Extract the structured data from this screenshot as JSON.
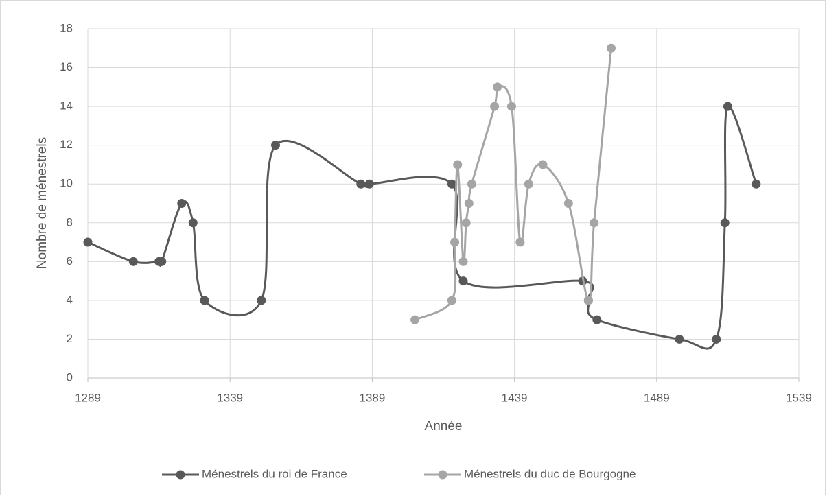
{
  "chart_data": {
    "type": "line",
    "x_label": "Année",
    "y_label": "Nombre de ménestrels",
    "xlim": [
      1289,
      1539
    ],
    "xticks": [
      1289,
      1339,
      1389,
      1439,
      1489,
      1539
    ],
    "ylim": [
      0,
      18
    ],
    "yticks": [
      0,
      2,
      4,
      6,
      8,
      10,
      12,
      14,
      16,
      18
    ],
    "grid": true,
    "smooth": true,
    "legend": "bottom",
    "series": [
      {
        "name": "Ménestrels du roi de France",
        "color": "#595959",
        "x": [
          1289,
          1305,
          1314,
          1315,
          1322,
          1326,
          1330,
          1350,
          1355,
          1385,
          1388,
          1417,
          1421,
          1463,
          1465,
          1468,
          1497,
          1510,
          1513,
          1514,
          1524
        ],
        "values": [
          7,
          6,
          6,
          6,
          9,
          8,
          4,
          4,
          12,
          10,
          10,
          10,
          5,
          5,
          4,
          3,
          2,
          2,
          8,
          14,
          10
        ]
      },
      {
        "name": "Ménestrels du duc de Bourgogne",
        "color": "#a5a5a5",
        "x": [
          1404,
          1417,
          1418,
          1419,
          1421,
          1422,
          1423,
          1424,
          1432,
          1433,
          1438,
          1441,
          1444,
          1449,
          1458,
          1465,
          1467,
          1473
        ],
        "values": [
          3,
          4,
          7,
          11,
          6,
          8,
          9,
          10,
          14,
          15,
          14,
          7,
          10,
          11,
          9,
          4,
          8,
          17
        ]
      }
    ]
  }
}
